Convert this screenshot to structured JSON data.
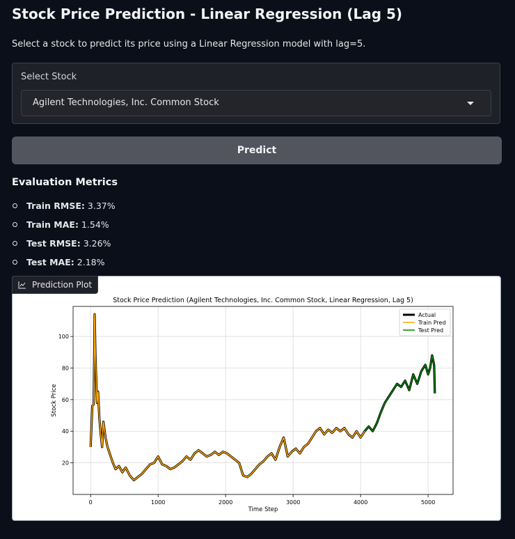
{
  "header": {
    "title": "Stock Price Prediction - Linear Regression (Lag 5)",
    "subtitle": "Select a stock to predict its price using a Linear Regression model with lag=5."
  },
  "select": {
    "label": "Select Stock",
    "value": "Agilent Technologies, Inc. Common Stock"
  },
  "predict_button": {
    "label": "Predict"
  },
  "metrics": {
    "title": "Evaluation Metrics",
    "items": [
      {
        "name": "Train RMSE:",
        "value": "3.37%"
      },
      {
        "name": "Train MAE:",
        "value": "1.54%"
      },
      {
        "name": "Test RMSE:",
        "value": "3.26%"
      },
      {
        "name": "Test MAE:",
        "value": "2.18%"
      }
    ]
  },
  "plot": {
    "tab_label": "Prediction Plot",
    "icon": "chart-icon"
  },
  "chart_data": {
    "type": "line",
    "title": "Stock Price Prediction (Agilent Technologies, Inc. Common Stock, Linear Regression, Lag 5)",
    "xlabel": "Time Step",
    "ylabel": "Stock Price",
    "xlim": [
      -260,
      5370
    ],
    "ylim": [
      0,
      119
    ],
    "xticks": [
      0,
      1000,
      2000,
      3000,
      4000,
      5000
    ],
    "yticks": [
      20,
      40,
      60,
      80,
      100
    ],
    "grid": true,
    "legend_position": "top-right",
    "colors": {
      "actual": "#000000",
      "train": "#ffa500",
      "test": "#008000"
    },
    "series": [
      {
        "name": "Actual",
        "x": [
          0,
          25,
          45,
          60,
          70,
          80,
          95,
          110,
          130,
          150,
          170,
          190,
          220,
          250,
          290,
          330,
          370,
          420,
          470,
          520,
          580,
          640,
          700,
          760,
          820,
          880,
          940,
          1000,
          1060,
          1120,
          1180,
          1240,
          1300,
          1360,
          1420,
          1480,
          1540,
          1600,
          1660,
          1720,
          1780,
          1840,
          1900,
          1960,
          2020,
          2080,
          2140,
          2200,
          2260,
          2320,
          2380,
          2440,
          2500,
          2560,
          2620,
          2680,
          2740,
          2800,
          2860,
          2920,
          2980,
          3040,
          3100,
          3160,
          3220,
          3280,
          3340,
          3400,
          3460,
          3520,
          3580,
          3640,
          3700,
          3760,
          3820,
          3880,
          3940,
          4000,
          4060,
          4120,
          4180,
          4240,
          4300,
          4360,
          4420,
          4480,
          4540,
          4600,
          4660,
          4720,
          4780,
          4840,
          4900,
          4960,
          5000,
          5030,
          5060,
          5090,
          5100
        ],
        "y": [
          30,
          56,
          57,
          114,
          90,
          76,
          58,
          65,
          48,
          38,
          30,
          46,
          36,
          30,
          25,
          20,
          16,
          18,
          14,
          17,
          12,
          9,
          11,
          13,
          16,
          19,
          20,
          24,
          19,
          18,
          16,
          17,
          19,
          21,
          24,
          22,
          26,
          28,
          26,
          24,
          25,
          27,
          25,
          27,
          26,
          24,
          22,
          20,
          12,
          11,
          13,
          16,
          19,
          21,
          24,
          26,
          22,
          30,
          36,
          24,
          27,
          29,
          26,
          30,
          32,
          36,
          40,
          42,
          38,
          41,
          39,
          42,
          40,
          42,
          38,
          36,
          40,
          36,
          40,
          43,
          40,
          45,
          52,
          58,
          62,
          66,
          70,
          68,
          72,
          66,
          76,
          70,
          78,
          82,
          76,
          80,
          88,
          82,
          64
        ]
      },
      {
        "name": "Train Pred",
        "x_range": [
          0,
          4100
        ]
      },
      {
        "name": "Test Pred",
        "x_range": [
          4100,
          5100
        ]
      }
    ]
  }
}
